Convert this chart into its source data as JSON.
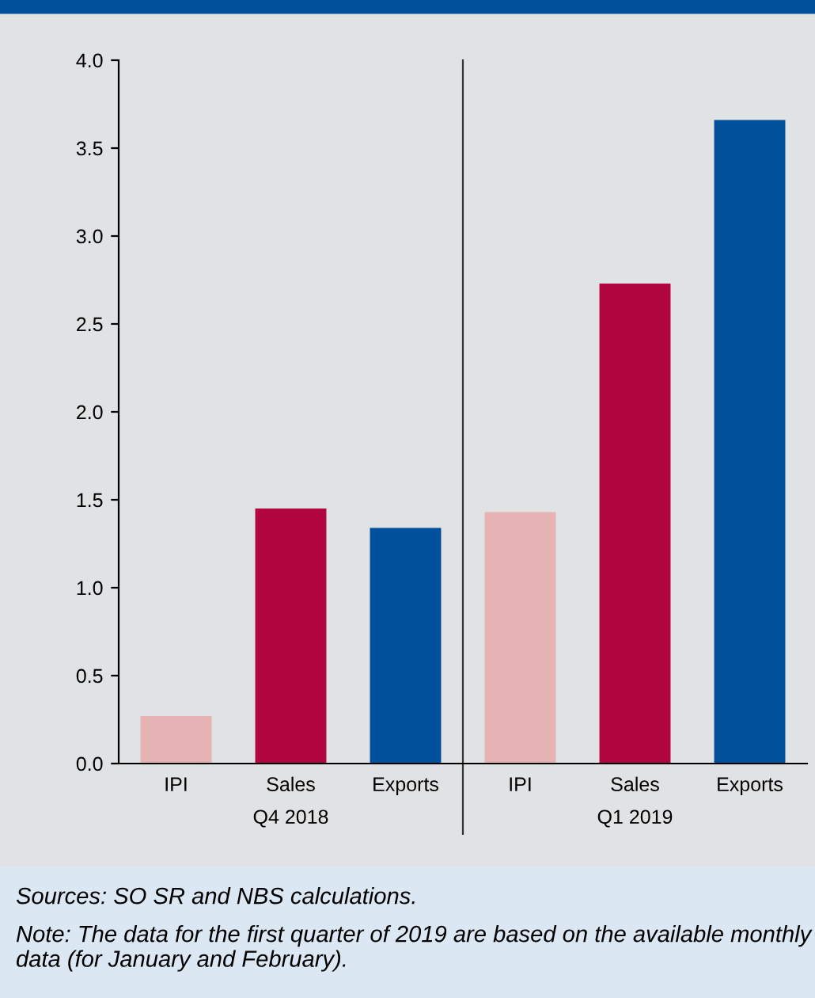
{
  "chart_data": {
    "type": "bar",
    "categories": [
      "IPI",
      "Sales",
      "Exports",
      "IPI",
      "Sales",
      "Exports"
    ],
    "values": [
      0.27,
      1.45,
      1.34,
      1.43,
      2.73,
      3.66
    ],
    "colors": [
      "#e6b3b4",
      "#b1063f",
      "#00509b",
      "#e6b3b4",
      "#b1063f",
      "#00509b"
    ],
    "ylim": [
      0,
      4
    ],
    "yticks": [
      {
        "value": 0,
        "label": "0.0"
      },
      {
        "value": 0.5,
        "label": "0.5"
      },
      {
        "value": 1,
        "label": "1.0"
      },
      {
        "value": 1.5,
        "label": "1.5"
      },
      {
        "value": 2,
        "label": "2.0"
      },
      {
        "value": 2.5,
        "label": "2.5"
      },
      {
        "value": 3,
        "label": "3.0"
      },
      {
        "value": 3.5,
        "label": "3.5"
      },
      {
        "value": 4,
        "label": "4.0"
      }
    ],
    "grid": false,
    "legend": false,
    "annotations": [
      "Q4 2018",
      "Q1 2019",
      "Sources: SO SR and NBS calculations.",
      "Note: The data for the first quarter of 2019 are based on the available monthly data (for January and February)."
    ]
  }
}
